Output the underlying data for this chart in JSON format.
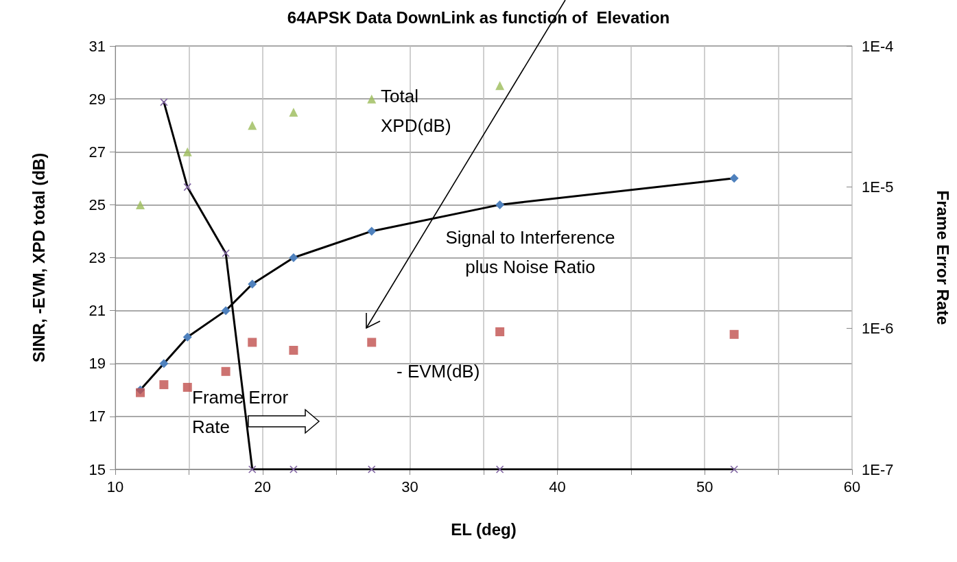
{
  "chart_data": {
    "type": "line",
    "title": "64APSK Data DownLink as function of  Elevation",
    "xlabel": "EL (deg)",
    "ylabel": "SINR, -EVM, XPD total (dB)",
    "y2label": "Frame Error Rate",
    "x": [
      11.7,
      13.3,
      14.9,
      17.5,
      19.3,
      22.1,
      27.4,
      36.1,
      52.0
    ],
    "series": [
      {
        "color": "#4f81bd",
        "marker": "diamond",
        "values": [
          18,
          19,
          20,
          21,
          22,
          23,
          24,
          25,
          26
        ]
      },
      {
        "type": "scatter",
        "color": "#c0504d",
        "marker": "square",
        "values": [
          17.9,
          18.2,
          18.1,
          18.7,
          19.8,
          19.5,
          19.8,
          20.2,
          20.1
        ]
      },
      {
        "type": "scatter",
        "color": "#9bbb59",
        "marker": "triangle",
        "values": [
          25,
          null,
          27,
          null,
          28,
          28.5,
          29,
          29.5,
          null
        ]
      },
      {
        "axis": "y2",
        "color": "#8064a2",
        "marker": "cross",
        "values": [
          null,
          4e-05,
          1e-05,
          3.4e-06,
          1e-07,
          1e-07,
          1e-07,
          1e-07,
          1e-07
        ]
      }
    ],
    "xlim": [
      10,
      60
    ],
    "xticks": [
      10,
      {
        "value": 15,
        "label": null
      },
      20,
      {
        "value": 25,
        "label": null
      },
      30,
      {
        "value": 35,
        "label": null
      },
      40,
      {
        "value": 45,
        "label": null
      },
      50,
      {
        "value": 55,
        "label": null
      },
      60
    ],
    "ylim": [
      15,
      31
    ],
    "yticks": [
      15,
      17,
      19,
      21,
      23,
      25,
      27,
      29,
      31
    ],
    "y2lim": [
      1e-07,
      0.0001
    ],
    "y2ticks": [
      {
        "value": 1e-07,
        "label": "1E-7"
      },
      {
        "value": 1e-06,
        "label": "1E-6"
      },
      {
        "value": 1e-05,
        "label": "1E-5"
      },
      {
        "value": 0.0001,
        "label": "1E-4"
      }
    ],
    "log": "y2",
    "grid": true,
    "line_style": "solid",
    "annotations": [
      "Total\nXPD(dB)",
      "Signal to Interference\nplus Noise Ratio",
      "- EVM(dB)",
      "Frame Error\nRate"
    ]
  }
}
